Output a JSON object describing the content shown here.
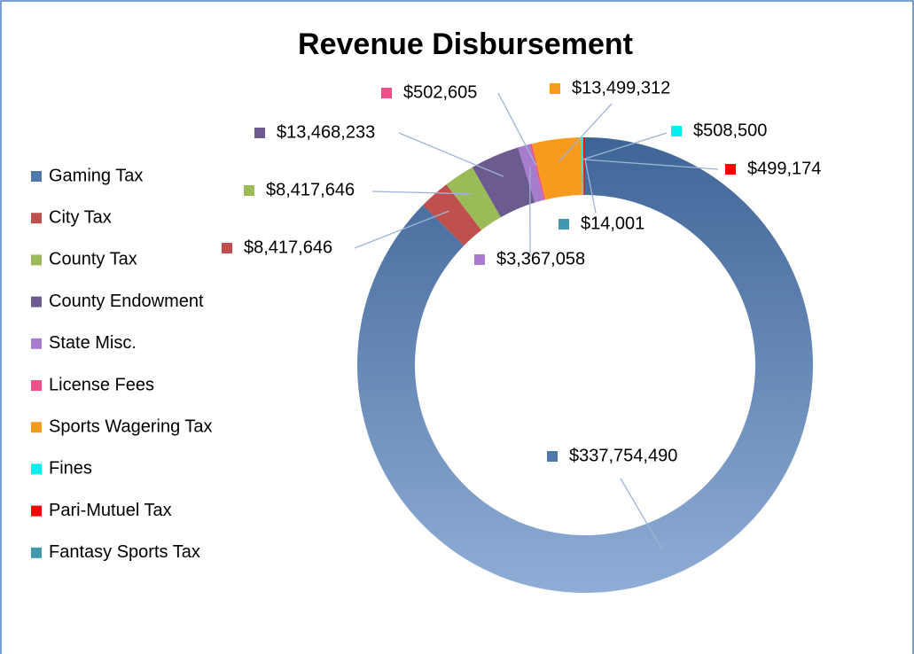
{
  "chart_data": {
    "type": "donut",
    "title": "Revenue Disbursement",
    "categories": [
      "Gaming Tax",
      "City Tax",
      "County Tax",
      "County Endowment",
      "State Misc.",
      "License Fees",
      "Sports Wagering Tax",
      "Fines",
      "Pari-Mutuel Tax",
      "Fantasy Sports Tax"
    ],
    "values": [
      337754490,
      8417646,
      8417646,
      13468233,
      3367058,
      502605,
      13499312,
      508500,
      499174,
      14001
    ],
    "value_labels": [
      "$337,754,490",
      "$8,417,646",
      "$8,417,646",
      "$13,468,233",
      "$3,367,058",
      "$502,605",
      "$13,499,312",
      "$508,500",
      "$499,174",
      "$14,001"
    ],
    "colors": [
      "#4f78ad",
      "#c0504d",
      "#9bbb59",
      "#6b5b8e",
      "#a77ccc",
      "#f0508a",
      "#f79a1e",
      "#00f0f0",
      "#ff0000",
      "#4198af"
    ],
    "legend": "left"
  }
}
